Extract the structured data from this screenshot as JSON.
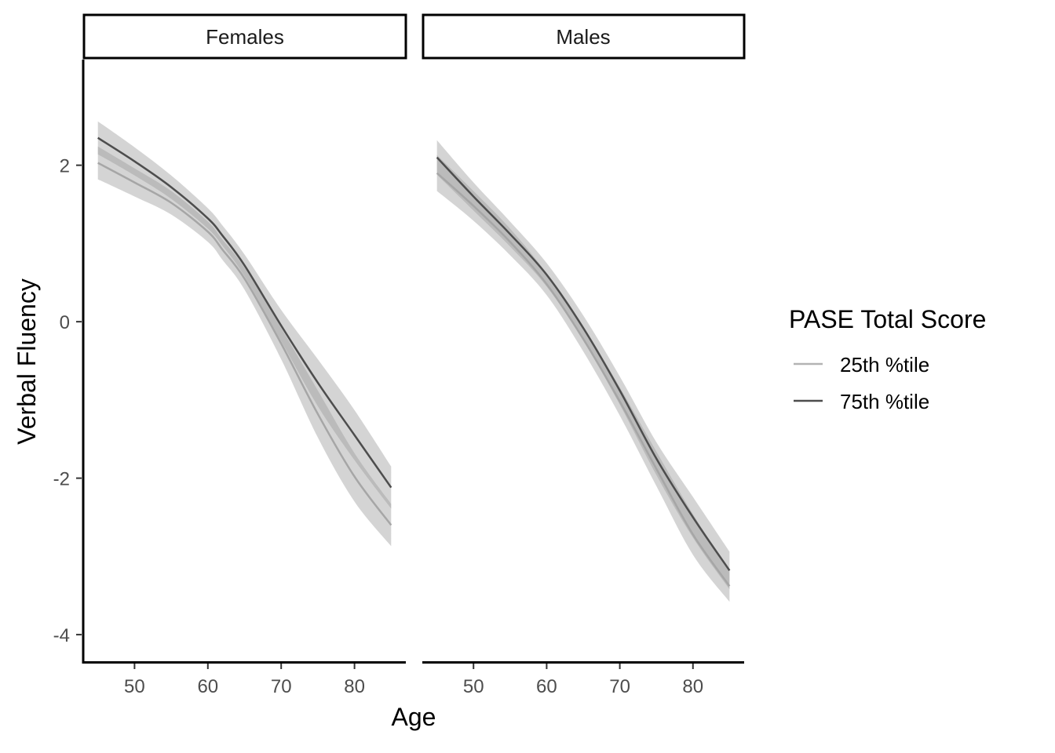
{
  "chart_data": {
    "type": "line",
    "xlabel": "Age",
    "ylabel": "Verbal Fluency",
    "xlim": [
      43,
      87
    ],
    "ylim": [
      -4.35,
      3.35
    ],
    "x_ticks": [
      50,
      60,
      70,
      80
    ],
    "x_tick_labels": [
      "50",
      "60",
      "70",
      "80"
    ],
    "y_ticks": [
      -4,
      -2,
      0,
      2
    ],
    "y_tick_labels": [
      "-4",
      "-2",
      "0",
      "2"
    ],
    "legend": {
      "title": "PASE Total Score",
      "position": "right",
      "entries": [
        {
          "label": "25th %tile",
          "color": "#b3b3b3"
        },
        {
          "label": "75th %tile",
          "color": "#4d4d4d"
        }
      ]
    },
    "ribbon_color": "#999999",
    "ribbon_opacity": 0.42,
    "grid": false,
    "panels": [
      {
        "label": "Females",
        "series": [
          {
            "name": "25th %tile",
            "x": [
              45,
              50,
              55,
              60,
              62,
              65,
              70,
              75,
              80,
              85
            ],
            "y": [
              2.03,
              1.78,
              1.52,
              1.15,
              0.92,
              0.55,
              -0.28,
              -1.18,
              -1.98,
              -2.6
            ],
            "lower": [
              1.82,
              1.6,
              1.37,
              1.02,
              0.79,
              0.41,
              -0.48,
              -1.48,
              -2.3,
              -2.87
            ],
            "upper": [
              2.24,
              1.96,
              1.67,
              1.28,
              1.05,
              0.69,
              -0.08,
              -0.88,
              -1.68,
              -2.33
            ]
          },
          {
            "name": "75th %tile",
            "x": [
              45,
              50,
              55,
              60,
              62,
              65,
              70,
              75,
              80,
              85
            ],
            "y": [
              2.35,
              2.05,
              1.72,
              1.32,
              1.1,
              0.72,
              -0.05,
              -0.78,
              -1.45,
              -2.12
            ],
            "lower": [
              2.14,
              1.87,
              1.57,
              1.19,
              0.97,
              0.58,
              -0.25,
              -1.08,
              -1.77,
              -2.39
            ],
            "upper": [
              2.56,
              2.23,
              1.87,
              1.45,
              1.23,
              0.86,
              0.15,
              -0.48,
              -1.13,
              -1.85
            ]
          }
        ]
      },
      {
        "label": "Males",
        "series": [
          {
            "name": "25th %tile",
            "x": [
              45,
              50,
              55,
              60,
              65,
              70,
              75,
              80,
              85
            ],
            "y": [
              1.9,
              1.48,
              1.02,
              0.48,
              -0.22,
              -1.02,
              -1.88,
              -2.72,
              -3.38
            ],
            "lower": [
              1.67,
              1.29,
              0.85,
              0.34,
              -0.38,
              -1.2,
              -2.1,
              -2.98,
              -3.58
            ],
            "upper": [
              2.13,
              1.67,
              1.19,
              0.62,
              -0.06,
              -0.84,
              -1.66,
              -2.46,
              -3.18
            ]
          },
          {
            "name": "75th %tile",
            "x": [
              45,
              50,
              55,
              60,
              65,
              70,
              75,
              80,
              85
            ],
            "y": [
              2.1,
              1.6,
              1.12,
              0.6,
              -0.08,
              -0.88,
              -1.75,
              -2.5,
              -3.18
            ],
            "lower": [
              1.88,
              1.42,
              0.96,
              0.45,
              -0.24,
              -1.06,
              -1.96,
              -2.76,
              -3.42
            ],
            "upper": [
              2.32,
              1.78,
              1.28,
              0.75,
              0.08,
              -0.7,
              -1.54,
              -2.24,
              -2.94
            ]
          }
        ]
      }
    ]
  }
}
